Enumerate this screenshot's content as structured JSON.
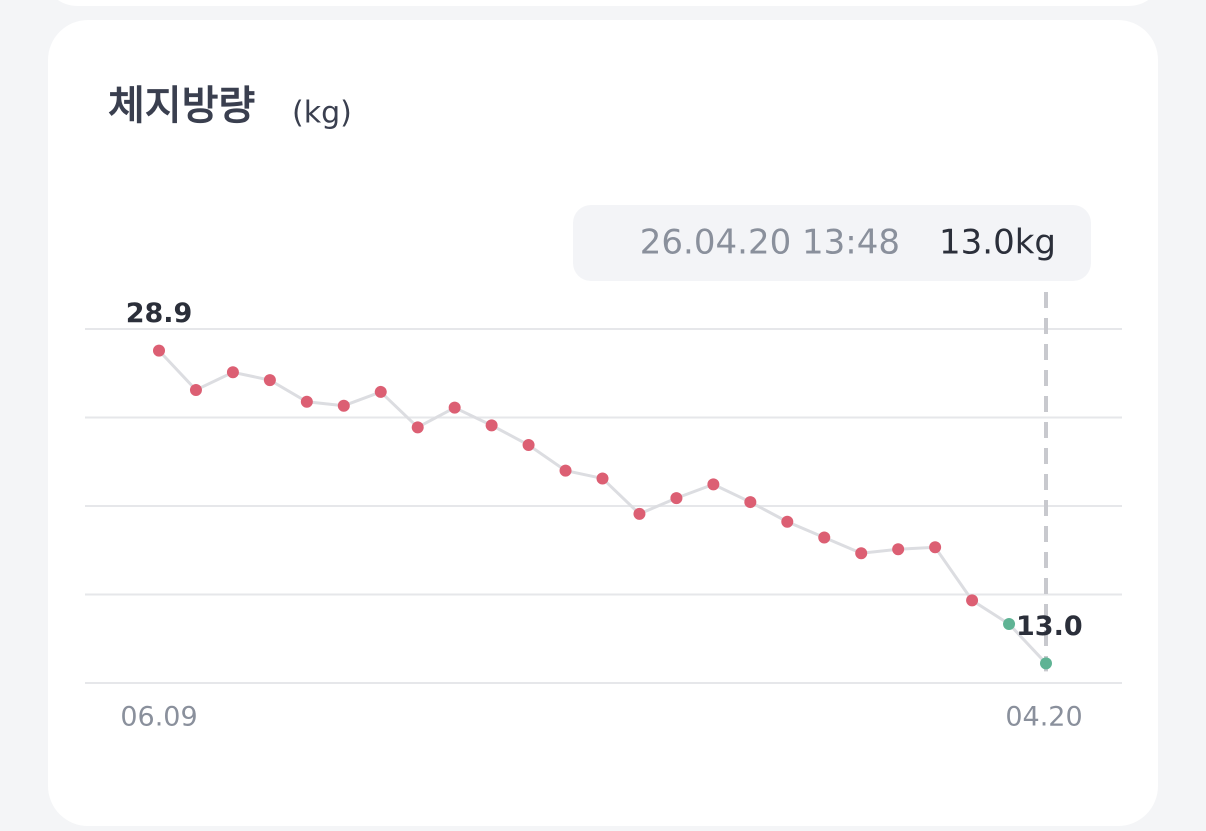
{
  "chart_data": {
    "type": "line",
    "title": "체지방량",
    "unit": "(kg)",
    "categories": [
      "06.09",
      null,
      null,
      null,
      null,
      null,
      null,
      null,
      null,
      null,
      null,
      null,
      null,
      null,
      null,
      null,
      null,
      null,
      null,
      null,
      null,
      null,
      null,
      null,
      "04.20"
    ],
    "values": [
      28.9,
      26.9,
      27.8,
      27.4,
      26.3,
      26.1,
      26.8,
      25.0,
      26.0,
      25.1,
      24.1,
      22.8,
      22.4,
      20.6,
      21.4,
      22.1,
      21.2,
      20.2,
      19.4,
      18.6,
      18.8,
      18.9,
      16.2,
      15.0,
      13.0
    ],
    "value_labels": [
      "28.9",
      null,
      null,
      null,
      null,
      null,
      null,
      null,
      null,
      null,
      null,
      null,
      null,
      null,
      null,
      null,
      null,
      null,
      null,
      null,
      null,
      null,
      null,
      null,
      "13.0"
    ],
    "point_colors": [
      "#dc5f73",
      "#dc5f73",
      "#dc5f73",
      "#dc5f73",
      "#dc5f73",
      "#dc5f73",
      "#dc5f73",
      "#dc5f73",
      "#dc5f73",
      "#dc5f73",
      "#dc5f73",
      "#dc5f73",
      "#dc5f73",
      "#dc5f73",
      "#dc5f73",
      "#dc5f73",
      "#dc5f73",
      "#dc5f73",
      "#dc5f73",
      "#dc5f73",
      "#dc5f73",
      "#dc5f73",
      "#dc5f73",
      "#5fb394",
      "#5fb394"
    ],
    "line_color": "#dcdde1",
    "ylim": [
      12,
      30
    ],
    "yticks": [
      12,
      16.5,
      21,
      25.5,
      30
    ],
    "grid": true,
    "tooltip": {
      "datetime": "26.04.20 13:48",
      "value_label": "13.0kg"
    }
  }
}
